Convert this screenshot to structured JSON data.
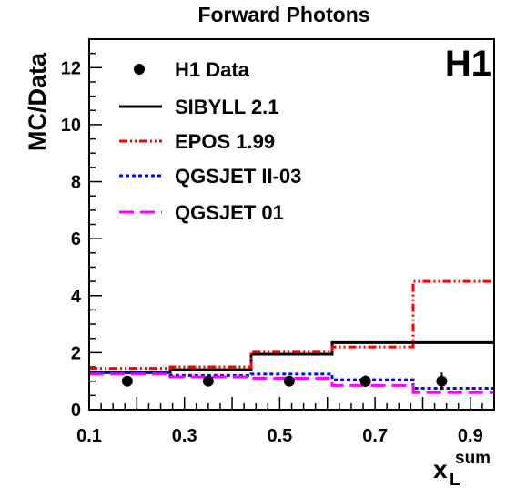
{
  "chart_data": {
    "type": "line",
    "title": "Forward Photons",
    "tag": "H1",
    "ylabel": "MC/Data",
    "xlabel_main": "x",
    "xlabel_sub": "L",
    "xlabel_sup": "sum",
    "xlim": [
      0.1,
      0.95
    ],
    "ylim": [
      0,
      13
    ],
    "x_ticks": [
      "0.1",
      "0.3",
      "0.5",
      "0.7",
      "0.9"
    ],
    "y_ticks": [
      "0",
      "2",
      "4",
      "6",
      "8",
      "10",
      "12"
    ],
    "bin_edges": [
      0.1,
      0.27,
      0.44,
      0.61,
      0.78,
      0.95
    ],
    "data": {
      "name": "H1 Data",
      "x": [
        0.18,
        0.35,
        0.52,
        0.68,
        0.84
      ],
      "y": [
        1.0,
        1.0,
        1.0,
        1.0,
        1.0
      ],
      "err": [
        0.05,
        0.05,
        0.05,
        0.2,
        0.3
      ]
    },
    "series": [
      {
        "name": "SIBYLL 2.1",
        "color": "#000000",
        "style": "solid",
        "values": [
          1.3,
          1.4,
          1.95,
          2.35,
          2.35
        ]
      },
      {
        "name": "EPOS 1.99",
        "color": "#ff0000",
        "style": "dashdotdot",
        "values": [
          1.45,
          1.5,
          2.05,
          2.2,
          4.5
        ]
      },
      {
        "name": "QGSJET II-03",
        "color": "#0000ff",
        "style": "dotted",
        "values": [
          1.3,
          1.2,
          1.25,
          1.05,
          0.75
        ]
      },
      {
        "name": "QGSJET 01",
        "color": "#ff00ff",
        "style": "dashed",
        "values": [
          1.25,
          1.15,
          1.1,
          0.85,
          0.6
        ]
      }
    ]
  }
}
